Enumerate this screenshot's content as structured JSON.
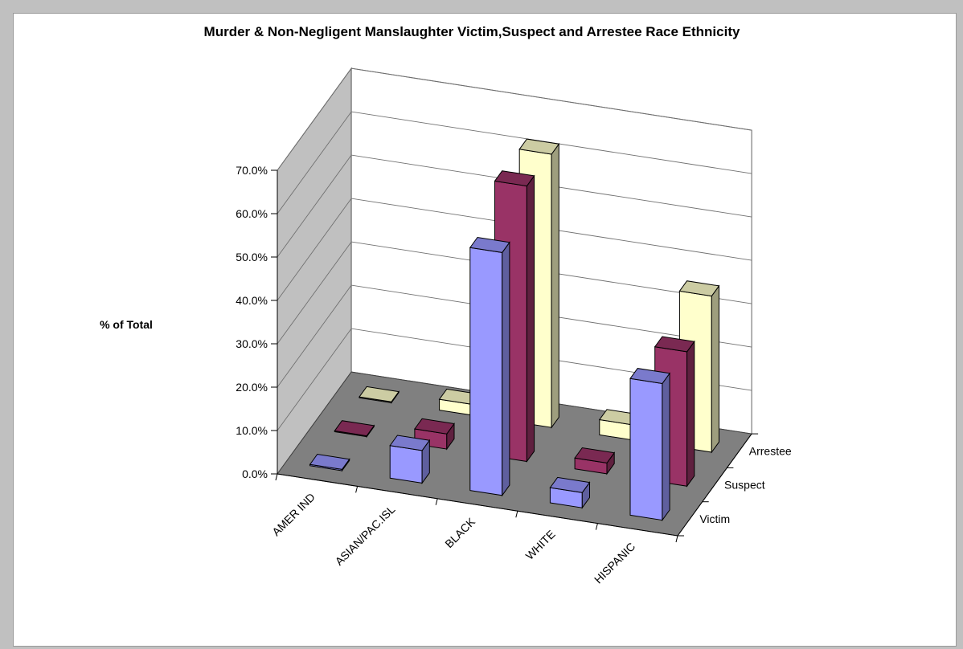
{
  "chart_data": {
    "type": "bar",
    "title": "Murder & Non-Negligent Manslaughter Victim,Suspect and Arrestee Race Ethnicity",
    "ylabel": "% of Total",
    "xlabel": "",
    "categories": [
      "AMER IND",
      "ASIAN/PAC.ISL",
      "BLACK",
      "WHITE",
      "HISPANIC"
    ],
    "series": [
      {
        "name": "Victim",
        "values": [
          0.3,
          7.5,
          56.0,
          3.5,
          31.5
        ]
      },
      {
        "name": "Suspect",
        "values": [
          0.2,
          3.5,
          63.5,
          2.5,
          31.0
        ]
      },
      {
        "name": "Arrestee",
        "values": [
          0.2,
          2.5,
          63.0,
          3.5,
          36.0
        ]
      }
    ],
    "ylim": [
      0,
      70
    ],
    "yticks": [
      "0.0%",
      "10.0%",
      "20.0%",
      "30.0%",
      "40.0%",
      "50.0%",
      "60.0%",
      "70.0%"
    ],
    "grid": true,
    "colors": {
      "Victim": "#9999ff",
      "Suspect": "#993366",
      "Arrestee": "#ffffcc",
      "floor": "#808080",
      "wall": "#c0c0c0"
    }
  }
}
